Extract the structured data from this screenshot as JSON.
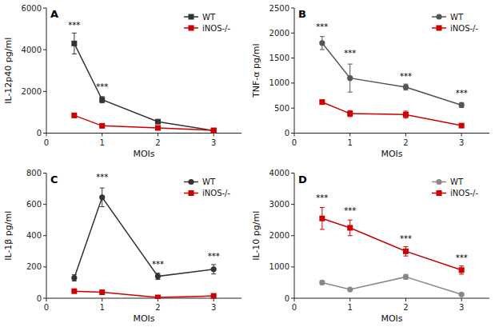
{
  "chart_data": [
    {
      "type": "line",
      "title": "A",
      "xlabel": "MOIs",
      "ylabel": "IL-12p40 pg/ml",
      "x": [
        0.5,
        1,
        2,
        3
      ],
      "series": [
        {
          "name": "WT",
          "color": "#333333",
          "marker": "square",
          "values": [
            4300,
            1600,
            550,
            120
          ],
          "errors": [
            500,
            150,
            80,
            40
          ]
        },
        {
          "name": "iNOS-/-",
          "color": "#cc0000",
          "marker": "square",
          "values": [
            850,
            350,
            250,
            130
          ],
          "errors": [
            100,
            60,
            50,
            30
          ]
        }
      ],
      "xlim": [
        0,
        3.5
      ],
      "xticks": [
        0,
        1,
        2,
        3
      ],
      "ylim": [
        0,
        6000
      ],
      "yticks": [
        0,
        2000,
        4000,
        6000
      ],
      "annotations": [
        {
          "x": 0.5,
          "y": 5000,
          "text": "***"
        },
        {
          "x": 1,
          "y": 2050,
          "text": "***"
        }
      ],
      "legend": "upper right",
      "grid": false
    },
    {
      "type": "line",
      "title": "B",
      "xlabel": "MOIs",
      "ylabel": "TNF-α pg/ml",
      "x": [
        0.5,
        1,
        2,
        3
      ],
      "series": [
        {
          "name": "WT",
          "color": "#555555",
          "marker": "circle",
          "values": [
            1800,
            1100,
            920,
            560
          ],
          "errors": [
            130,
            280,
            60,
            50
          ]
        },
        {
          "name": "iNOS-/-",
          "color": "#cc0000",
          "marker": "square",
          "values": [
            620,
            390,
            370,
            150
          ],
          "errors": [
            40,
            60,
            70,
            30
          ]
        }
      ],
      "xlim": [
        0,
        3.5
      ],
      "xticks": [
        0,
        1,
        2,
        3
      ],
      "ylim": [
        0,
        2500
      ],
      "yticks": [
        0,
        500,
        1000,
        1500,
        2000,
        2500
      ],
      "annotations": [
        {
          "x": 0.5,
          "y": 2050,
          "text": "***"
        },
        {
          "x": 1,
          "y": 1530,
          "text": "***"
        },
        {
          "x": 2,
          "y": 1060,
          "text": "***"
        },
        {
          "x": 3,
          "y": 720,
          "text": "***"
        }
      ],
      "legend": "upper right",
      "grid": false
    },
    {
      "type": "line",
      "title": "C",
      "xlabel": "MOIs",
      "ylabel": "IL-1β pg/ml",
      "x": [
        0.5,
        1,
        2,
        3
      ],
      "series": [
        {
          "name": "WT",
          "color": "#333333",
          "marker": "circle",
          "values": [
            130,
            645,
            140,
            185
          ],
          "errors": [
            20,
            60,
            20,
            30
          ]
        },
        {
          "name": "iNOS-/-",
          "color": "#cc0000",
          "marker": "square",
          "values": [
            45,
            38,
            5,
            15
          ],
          "errors": [
            10,
            8,
            3,
            5
          ]
        }
      ],
      "xlim": [
        0,
        3.5
      ],
      "xticks": [
        0,
        1,
        2,
        3
      ],
      "ylim": [
        0,
        800
      ],
      "yticks": [
        0,
        200,
        400,
        600,
        800
      ],
      "annotations": [
        {
          "x": 1,
          "y": 750,
          "text": "***"
        },
        {
          "x": 2,
          "y": 195,
          "text": "***"
        },
        {
          "x": 3,
          "y": 245,
          "text": "***"
        }
      ],
      "legend": "upper right",
      "grid": false
    },
    {
      "type": "line",
      "title": "D",
      "xlabel": "MOIs",
      "ylabel": "IL-10 pg/ml",
      "x": [
        0.5,
        1,
        2,
        3
      ],
      "series": [
        {
          "name": "WT",
          "color": "#888888",
          "marker": "circle",
          "values": [
            500,
            280,
            680,
            120
          ],
          "errors": [
            60,
            40,
            80,
            20
          ]
        },
        {
          "name": "iNOS-/-",
          "color": "#cc0000",
          "marker": "square",
          "values": [
            2550,
            2250,
            1500,
            900
          ],
          "errors": [
            350,
            250,
            150,
            130
          ]
        }
      ],
      "xlim": [
        0,
        3.5
      ],
      "xticks": [
        0,
        1,
        2,
        3
      ],
      "ylim": [
        0,
        4000
      ],
      "yticks": [
        0,
        1000,
        2000,
        3000,
        4000
      ],
      "annotations": [
        {
          "x": 0.5,
          "y": 3100,
          "text": "***"
        },
        {
          "x": 1,
          "y": 2680,
          "text": "***"
        },
        {
          "x": 2,
          "y": 1800,
          "text": "***"
        },
        {
          "x": 3,
          "y": 1180,
          "text": "***"
        }
      ],
      "legend": "upper right",
      "grid": false
    }
  ]
}
